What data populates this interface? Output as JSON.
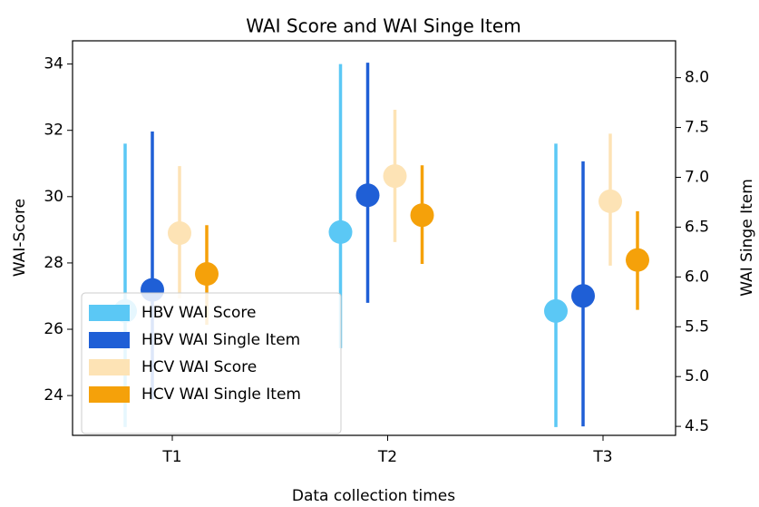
{
  "chart_data": {
    "type": "errorbar",
    "title": "WAI Score and WAI Singe Item",
    "xlabel": "Data collection times",
    "ylabel": "WAI-Score",
    "y2label": "WAI Singe Item",
    "categories": [
      "T1",
      "T2",
      "T3"
    ],
    "ylim": [
      22.8,
      34.7
    ],
    "yticks": [
      24,
      26,
      28,
      30,
      32,
      34
    ],
    "y2lim": [
      4.41,
      8.37
    ],
    "y2ticks": [
      4.5,
      {
        "value": 5,
        "label": "5.0"
      },
      5.5,
      {
        "value": 6,
        "label": "6.0"
      },
      6.5,
      {
        "value": 7,
        "label": "7.0"
      },
      7.5,
      {
        "value": 8,
        "label": "8.0"
      }
    ],
    "legend": "lower left",
    "series": [
      {
        "name": "HBV WAI Score",
        "color": "#5bc8f5",
        "values": [
          26.55,
          28.93,
          26.55
        ],
        "lower": [
          23.05,
          25.43,
          23.05
        ],
        "upper": [
          31.6,
          34.0,
          31.6
        ]
      },
      {
        "name": "HBV WAI Single Item",
        "color": "#1f5fd6",
        "axis": "y2",
        "values": [
          5.87,
          6.82,
          5.81
        ],
        "lower": [
          4.77,
          5.74,
          4.5
        ],
        "upper": [
          7.46,
          8.15,
          7.16
        ]
      },
      {
        "name": "HCV WAI Score",
        "color": "#fde3b5",
        "values": [
          28.9,
          30.62,
          29.86
        ],
        "lower": [
          26.93,
          28.63,
          27.92
        ],
        "upper": [
          30.92,
          32.62,
          31.9
        ]
      },
      {
        "name": "HCV WAI Single Item",
        "color": "#f5a10a",
        "axis": "y2",
        "values": [
          6.03,
          6.62,
          6.17
        ],
        "lower": [
          5.52,
          6.13,
          5.67
        ],
        "upper": [
          6.52,
          7.12,
          6.66
        ]
      }
    ]
  }
}
